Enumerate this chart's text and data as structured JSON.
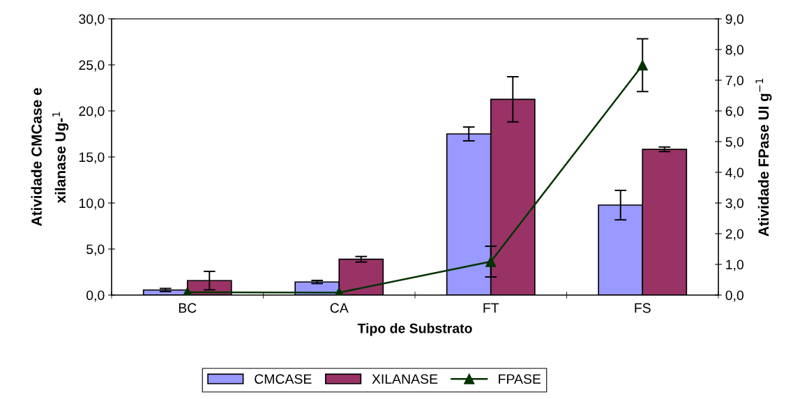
{
  "chart_data": {
    "type": "bar",
    "xlabel": "Tipo de Substrato",
    "ylabel": "Atividade CMCase e\nxilanase Ug-$^{1}$",
    "y2label": "Atividade FPase UI g$^{−1}$",
    "categories": [
      "BC",
      "CA",
      "FT",
      "FS"
    ],
    "series": [
      {
        "name": "CMCASE",
        "color": "#9999ff",
        "values": [
          0.55,
          1.42,
          17.5,
          9.77
        ],
        "errors": [
          0.17,
          0.17,
          0.75,
          1.6
        ]
      },
      {
        "name": "XILANASE",
        "color": "#993366",
        "values": [
          1.57,
          3.89,
          21.26,
          15.83
        ],
        "errors": [
          1.0,
          0.3,
          2.45,
          0.25
        ]
      },
      {
        "name": "FPASE",
        "type": "line",
        "axis": "y2",
        "color": "#003300",
        "marker": "triangle",
        "values": [
          0.09,
          0.08,
          1.09,
          7.49
        ],
        "errors": [
          null,
          null,
          0.5,
          0.86
        ]
      }
    ],
    "ylim": [
      0,
      30
    ],
    "yticks": [
      {
        "value": 0,
        "label": "0,0"
      },
      {
        "value": 5,
        "label": "5,0"
      },
      {
        "value": 10,
        "label": "10,0"
      },
      {
        "value": 15,
        "label": "15,0"
      },
      {
        "value": 20,
        "label": "20,0"
      },
      {
        "value": 25,
        "label": "25,0"
      },
      {
        "value": 30,
        "label": "30,0"
      }
    ],
    "y2lim": [
      0,
      9
    ],
    "y2ticks": [
      {
        "value": 0,
        "label": "0,0"
      },
      {
        "value": 1,
        "label": "1,0"
      },
      {
        "value": 2,
        "label": "2,0"
      },
      {
        "value": 3,
        "label": "3,0"
      },
      {
        "value": 4,
        "label": "4,0"
      },
      {
        "value": 5,
        "label": "5,0"
      },
      {
        "value": 6,
        "label": "6,0"
      },
      {
        "value": 7,
        "label": "7,0"
      },
      {
        "value": 8,
        "label": "8,0"
      },
      {
        "value": 9,
        "label": "9,0"
      }
    ],
    "grid": false,
    "legend": "bottom"
  }
}
